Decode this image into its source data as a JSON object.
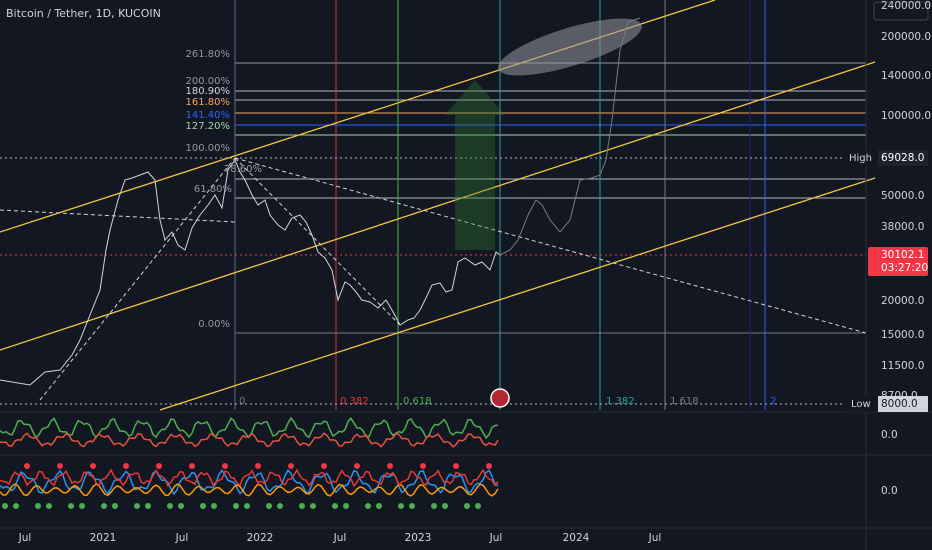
{
  "header": {
    "title": "Bitcoin / Tether, 1D, KUCOIN"
  },
  "price_axis": {
    "labels": [
      "240000.0",
      "200000.0",
      "140000.0",
      "100000.0",
      "50000.0",
      "38000.0",
      "20000.0",
      "15000.0",
      "11500.0",
      "8700.0"
    ],
    "high": {
      "label": "High",
      "value": "69028.0"
    },
    "last": {
      "value": "30102.1",
      "countdown": "03:27:20"
    },
    "low": {
      "label": "Low",
      "value": "8000.0"
    }
  },
  "fib_levels": [
    "261.80%",
    "200.00%",
    "180.90%",
    "161.80%",
    "141.40%",
    "127.20%",
    "100.00%",
    "78.60%",
    "61.80%",
    "0.00%"
  ],
  "fib_time": [
    "0",
    "0.382",
    "0.618",
    "1.382",
    "1.618",
    "2"
  ],
  "oscillator_axis": [
    "0.0",
    "0.0"
  ],
  "time_axis": [
    "Jul",
    "2021",
    "Jul",
    "2022",
    "Jul",
    "2023",
    "Jul",
    "2024",
    "Jul"
  ]
}
